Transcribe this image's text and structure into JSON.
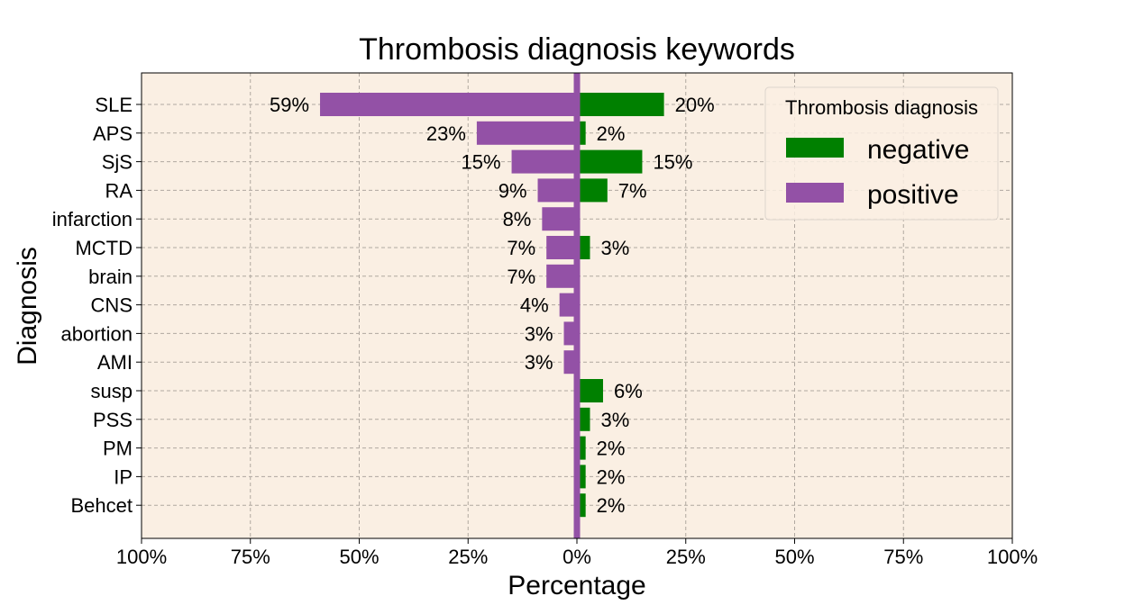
{
  "chart_data": {
    "type": "bar",
    "orientation": "horizontal-diverging",
    "title": "Thrombosis diagnosis keywords",
    "xlabel": "Percentage",
    "ylabel": "Diagnosis",
    "xlim": [
      -100,
      100
    ],
    "x_ticks": [
      -100,
      -75,
      -50,
      -25,
      0,
      25,
      50,
      75,
      100
    ],
    "x_tick_labels": [
      "100%",
      "75%",
      "50%",
      "25%",
      "0%",
      "25%",
      "50%",
      "75%",
      "100%"
    ],
    "categories": [
      "SLE",
      "APS",
      "SjS",
      "RA",
      "infarction",
      "MCTD",
      "brain",
      "CNS",
      "abortion",
      "AMI",
      "susp",
      "PSS",
      "PM",
      "IP",
      "Behcet"
    ],
    "series": [
      {
        "name": "negative",
        "color": "#008000",
        "direction": "right",
        "values": [
          20,
          2,
          15,
          7,
          null,
          3,
          null,
          null,
          null,
          null,
          6,
          3,
          2,
          2,
          2
        ],
        "labels": [
          "20%",
          "2%",
          "15%",
          "7%",
          null,
          "3%",
          null,
          null,
          null,
          null,
          "6%",
          "3%",
          "2%",
          "2%",
          "2%"
        ]
      },
      {
        "name": "positive",
        "color": "#9351a6",
        "direction": "left",
        "values": [
          59,
          23,
          15,
          9,
          8,
          7,
          7,
          4,
          3,
          3,
          null,
          null,
          null,
          null,
          null
        ],
        "labels": [
          "59%",
          "23%",
          "15%",
          "9%",
          "8%",
          "7%",
          "7%",
          "4%",
          "3%",
          "3%",
          null,
          null,
          null,
          null,
          null
        ]
      }
    ],
    "legend": {
      "title": "Thrombosis diagnosis",
      "placement": "top-right",
      "entries": [
        "negative",
        "positive"
      ]
    },
    "grid": true,
    "background_color": "#faefe3",
    "zero_line_color": "#9351a6"
  }
}
